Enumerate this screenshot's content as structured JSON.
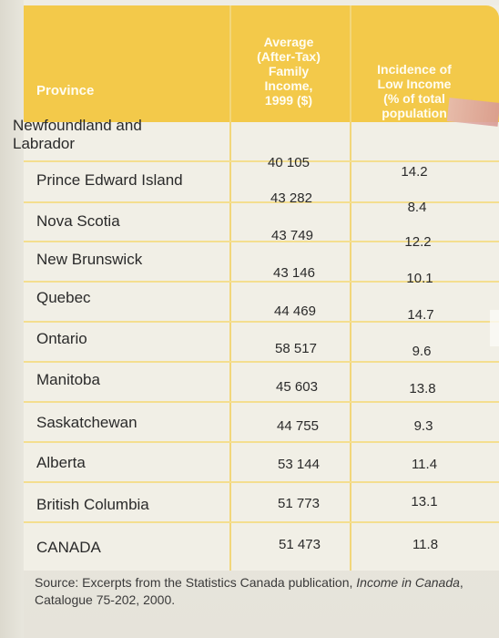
{
  "table": {
    "headers": {
      "province": "Province",
      "income": "Average\n(After-Tax)\nFamily\nIncome,\n1999 ($)",
      "incidence": "Incidence of\nLow Income\n(% of total\npopulation"
    },
    "rows": [
      {
        "province": "Newfoundland and\nLabrador",
        "income": "40 105",
        "incidence": "14.2"
      },
      {
        "province": "Prince Edward Island",
        "income": "43 282",
        "incidence": "8.4"
      },
      {
        "province": "Nova Scotia",
        "income": "43 749",
        "incidence": "12.2"
      },
      {
        "province": "New Brunswick",
        "income": "43 146",
        "incidence": "10.1"
      },
      {
        "province": "Quebec",
        "income": "44 469",
        "incidence": "14.7"
      },
      {
        "province": "Ontario",
        "income": "58 517",
        "incidence": "9.6"
      },
      {
        "province": "Manitoba",
        "income": "45 603",
        "incidence": "13.8"
      },
      {
        "province": "Saskatchewan",
        "income": "44 755",
        "incidence": "9.3"
      },
      {
        "province": "Alberta",
        "income": "53 144",
        "incidence": "11.4"
      },
      {
        "province": "British Columbia",
        "income": "51 773",
        "incidence": "13.1"
      },
      {
        "province": "CANADA",
        "income": "51 473",
        "incidence": "11.8"
      }
    ]
  },
  "source": {
    "prefix": "Source: Excerpts from the Statistics Canada publication, ",
    "title": "Income in Canada",
    "suffix": ", Catalogue 75-202, 2000."
  },
  "colors": {
    "header_band": "#f3c94a",
    "grid_line": "#f2d67a",
    "paper": "#f1efe6"
  }
}
